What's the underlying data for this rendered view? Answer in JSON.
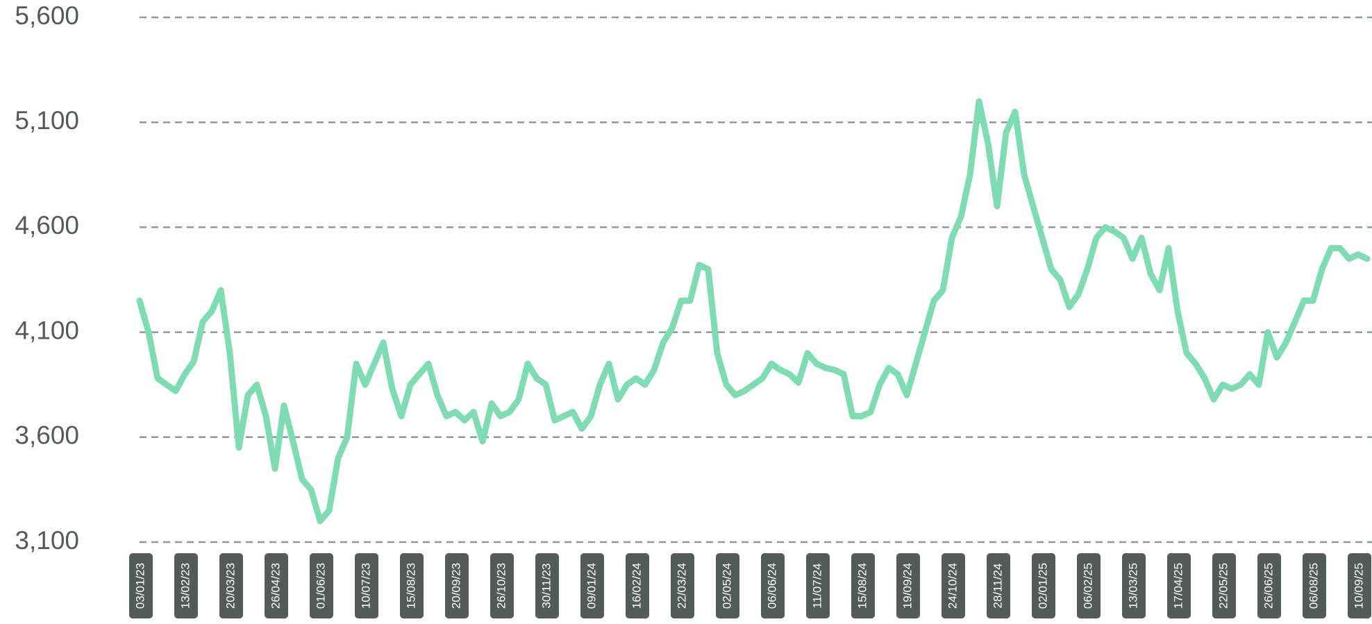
{
  "chart_data": {
    "type": "line",
    "categories": [
      "03/01/23",
      null,
      null,
      null,
      null,
      "13/02/23",
      null,
      null,
      null,
      null,
      "20/03/23",
      null,
      null,
      null,
      null,
      "26/04/23",
      null,
      null,
      null,
      null,
      "01/06/23",
      null,
      null,
      null,
      null,
      "10/07/23",
      null,
      null,
      null,
      null,
      "15/08/23",
      null,
      null,
      null,
      null,
      "20/09/23",
      null,
      null,
      null,
      null,
      "26/10/23",
      null,
      null,
      null,
      null,
      "30/11/23",
      null,
      null,
      null,
      null,
      "09/01/24",
      null,
      null,
      null,
      null,
      "16/02/24",
      null,
      null,
      null,
      null,
      "22/03/24",
      null,
      null,
      null,
      null,
      "02/05/24",
      null,
      null,
      null,
      null,
      "06/06/24",
      null,
      null,
      null,
      null,
      "11/07/24",
      null,
      null,
      null,
      null,
      "15/08/24",
      null,
      null,
      null,
      null,
      "19/09/24",
      null,
      null,
      null,
      null,
      "24/10/24",
      null,
      null,
      null,
      null,
      "28/11/24",
      null,
      null,
      null,
      null,
      "02/01/25",
      null,
      null,
      null,
      null,
      "06/02/25",
      null,
      null,
      null,
      null,
      "13/03/25",
      null,
      null,
      null,
      null,
      "17/04/25",
      null,
      null,
      null,
      null,
      "22/05/25",
      null,
      null,
      null,
      null,
      "26/06/25",
      null,
      null,
      null,
      null,
      "06/08/25",
      null,
      null,
      null,
      null,
      "10/09/25",
      null
    ],
    "series": [
      {
        "color": "#7ddcb2",
        "values": [
          4250,
          4100,
          3880,
          3850,
          3820,
          3900,
          3960,
          4150,
          4200,
          4300,
          4000,
          3550,
          3800,
          3850,
          3700,
          3450,
          3750,
          3580,
          3400,
          3350,
          3200,
          3250,
          3500,
          3600,
          3950,
          3850,
          3950,
          4050,
          3830,
          3700,
          3850,
          3900,
          3950,
          3800,
          3700,
          3720,
          3680,
          3720,
          3580,
          3760,
          3700,
          3720,
          3780,
          3950,
          3880,
          3850,
          3680,
          3700,
          3720,
          3640,
          3700,
          3850,
          3950,
          3780,
          3850,
          3880,
          3850,
          3920,
          4050,
          4120,
          4250,
          4250,
          4420,
          4400,
          4000,
          3850,
          3800,
          3820,
          3850,
          3880,
          3950,
          3920,
          3900,
          3860,
          4000,
          3950,
          3930,
          3920,
          3900,
          3700,
          3700,
          3720,
          3850,
          3930,
          3900,
          3800,
          3950,
          4100,
          4250,
          4300,
          4550,
          4650,
          4850,
          5200,
          5000,
          4700,
          5050,
          5150,
          4850,
          4700,
          4550,
          4400,
          4350,
          4220,
          4280,
          4400,
          4550,
          4600,
          4580,
          4550,
          4450,
          4550,
          4380,
          4300,
          4500,
          4200,
          4000,
          3950,
          3880,
          3780,
          3850,
          3830,
          3850,
          3900,
          3850,
          4100,
          3980,
          4050,
          4150,
          4250,
          4250,
          4400,
          4500,
          4500,
          4450,
          4470,
          4450
        ]
      }
    ],
    "ylim": [
      3100,
      5600
    ],
    "yticks": [
      {
        "value": 3100,
        "label": "3,100"
      },
      {
        "value": 3600,
        "label": "3,600"
      },
      {
        "value": 4100,
        "label": "4,100"
      },
      {
        "value": 4600,
        "label": "4,600"
      },
      {
        "value": 5100,
        "label": "5,100"
      },
      {
        "value": 5600,
        "label": "5,600"
      }
    ],
    "grid": true
  }
}
